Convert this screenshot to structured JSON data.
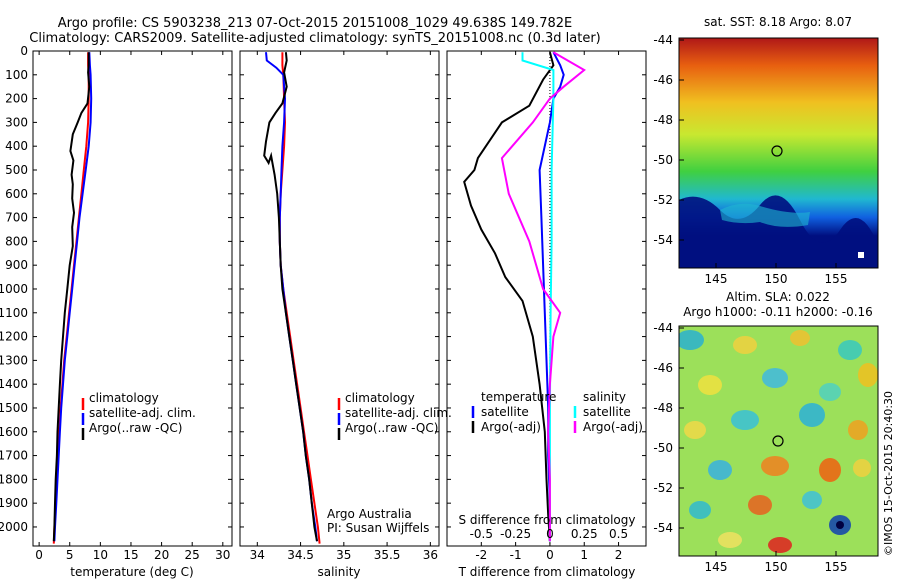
{
  "header": {
    "line1": "Argo profile: CS 5903238_213 07-Oct-2015 20151008_1029 49.638S 149.782E",
    "line2": "Climatology: CARS2009. Satellite-adjusted climatology: synTS_20151008.nc (0.3d later)"
  },
  "colors": {
    "climatology": "#ff0000",
    "satellite": "#0000ff",
    "argo": "#000000",
    "argo_salinity": "#ff00ff",
    "sat_salinity": "#00ffff"
  },
  "chart_data": [
    {
      "id": "temperature",
      "type": "line",
      "xlabel": "temperature (deg C)",
      "xlim": [
        -1,
        31.5
      ],
      "ylim": [
        2080,
        0
      ],
      "xticks": [
        0,
        5,
        10,
        15,
        20,
        25,
        30
      ],
      "yticks": [
        0,
        100,
        200,
        300,
        400,
        500,
        600,
        700,
        800,
        900,
        1000,
        1100,
        1200,
        1300,
        1400,
        1500,
        1600,
        1700,
        1800,
        1900,
        2000
      ],
      "legend": [
        "climatology",
        "satellite-adj. clim.",
        "Argo(..raw -QC)"
      ],
      "series": [
        {
          "name": "climatology",
          "color": "#ff0000",
          "points": [
            [
              8.0,
              5
            ],
            [
              8.0,
              60
            ],
            [
              8.1,
              100
            ],
            [
              8.1,
              200
            ],
            [
              8.0,
              300
            ],
            [
              7.7,
              400
            ],
            [
              7.3,
              500
            ],
            [
              6.9,
              600
            ],
            [
              6.5,
              700
            ],
            [
              6.1,
              800
            ],
            [
              5.7,
              900
            ],
            [
              5.3,
              1000
            ],
            [
              4.9,
              1100
            ],
            [
              4.5,
              1200
            ],
            [
              4.1,
              1300
            ],
            [
              3.8,
              1400
            ],
            [
              3.5,
              1500
            ],
            [
              3.3,
              1600
            ],
            [
              3.1,
              1700
            ],
            [
              2.9,
              1800
            ],
            [
              2.7,
              1900
            ],
            [
              2.5,
              2000
            ],
            [
              2.4,
              2070
            ]
          ]
        },
        {
          "name": "satellite-adj. clim.",
          "color": "#0000ff",
          "points": [
            [
              8.2,
              5
            ],
            [
              8.3,
              60
            ],
            [
              8.4,
              100
            ],
            [
              8.5,
              200
            ],
            [
              8.4,
              300
            ],
            [
              8.1,
              400
            ],
            [
              7.6,
              500
            ],
            [
              7.1,
              600
            ],
            [
              6.6,
              700
            ],
            [
              6.2,
              800
            ],
            [
              5.8,
              900
            ],
            [
              5.4,
              1000
            ],
            [
              5.0,
              1100
            ],
            [
              4.6,
              1200
            ],
            [
              4.2,
              1300
            ],
            [
              3.9,
              1400
            ],
            [
              3.6,
              1500
            ],
            [
              3.4,
              1600
            ],
            [
              3.2,
              1700
            ],
            [
              3.0,
              1800
            ],
            [
              2.8,
              1900
            ],
            [
              2.6,
              2000
            ],
            [
              2.5,
              2060
            ]
          ]
        },
        {
          "name": "Argo(..raw -QC)",
          "color": "#000000",
          "points": [
            [
              8.1,
              5
            ],
            [
              8.1,
              60
            ],
            [
              8.0,
              90
            ],
            [
              8.2,
              150
            ],
            [
              7.9,
              220
            ],
            [
              6.9,
              260
            ],
            [
              6.3,
              300
            ],
            [
              5.5,
              350
            ],
            [
              5.1,
              420
            ],
            [
              5.6,
              460
            ],
            [
              5.3,
              520
            ],
            [
              5.5,
              560
            ],
            [
              5.4,
              620
            ],
            [
              5.7,
              680
            ],
            [
              5.4,
              740
            ],
            [
              5.5,
              820
            ],
            [
              5.0,
              900
            ],
            [
              4.6,
              1000
            ],
            [
              4.2,
              1100
            ],
            [
              3.9,
              1200
            ],
            [
              3.6,
              1300
            ],
            [
              3.4,
              1400
            ],
            [
              3.2,
              1500
            ],
            [
              3.0,
              1600
            ],
            [
              2.9,
              1700
            ],
            [
              2.7,
              1800
            ],
            [
              2.6,
              1900
            ],
            [
              2.5,
              2000
            ],
            [
              2.4,
              2060
            ]
          ]
        }
      ]
    },
    {
      "id": "salinity",
      "type": "line",
      "xlabel": "salinity",
      "xlim": [
        33.8,
        36.1
      ],
      "ylim": [
        2080,
        0
      ],
      "xticks": [
        34,
        34.5,
        35,
        35.5,
        36
      ],
      "legend": [
        "climatology",
        "satellite-adj. clim.",
        "Argo(..raw -QC)"
      ],
      "annotation": [
        "Argo Australia",
        "PI: Susan Wijffels"
      ],
      "series": [
        {
          "name": "climatology",
          "color": "#ff0000",
          "points": [
            [
              34.29,
              5
            ],
            [
              34.29,
              60
            ],
            [
              34.3,
              100
            ],
            [
              34.31,
              200
            ],
            [
              34.32,
              300
            ],
            [
              34.31,
              400
            ],
            [
              34.29,
              500
            ],
            [
              34.27,
              600
            ],
            [
              34.26,
              700
            ],
            [
              34.26,
              800
            ],
            [
              34.27,
              900
            ],
            [
              34.3,
              1000
            ],
            [
              34.34,
              1100
            ],
            [
              34.38,
              1200
            ],
            [
              34.42,
              1300
            ],
            [
              34.46,
              1400
            ],
            [
              34.5,
              1500
            ],
            [
              34.54,
              1600
            ],
            [
              34.58,
              1700
            ],
            [
              34.62,
              1800
            ],
            [
              34.66,
              1900
            ],
            [
              34.7,
              2000
            ],
            [
              34.72,
              2070
            ]
          ]
        },
        {
          "name": "satellite-adj. clim.",
          "color": "#0000ff",
          "points": [
            [
              34.1,
              5
            ],
            [
              34.11,
              40
            ],
            [
              34.22,
              70
            ],
            [
              34.3,
              100
            ],
            [
              34.32,
              200
            ],
            [
              34.31,
              300
            ],
            [
              34.29,
              400
            ],
            [
              34.28,
              500
            ],
            [
              34.27,
              600
            ],
            [
              34.26,
              700
            ],
            [
              34.26,
              800
            ],
            [
              34.27,
              900
            ],
            [
              34.3,
              1000
            ],
            [
              34.33,
              1100
            ],
            [
              34.37,
              1200
            ],
            [
              34.41,
              1300
            ],
            [
              34.45,
              1400
            ],
            [
              34.49,
              1500
            ],
            [
              34.53,
              1600
            ],
            [
              34.56,
              1700
            ],
            [
              34.6,
              1800
            ],
            [
              34.63,
              1900
            ],
            [
              34.67,
              2000
            ],
            [
              34.69,
              2060
            ]
          ]
        },
        {
          "name": "Argo(..raw -QC)",
          "color": "#000000",
          "points": [
            [
              34.33,
              5
            ],
            [
              34.34,
              40
            ],
            [
              34.31,
              90
            ],
            [
              34.34,
              150
            ],
            [
              34.29,
              220
            ],
            [
              34.21,
              260
            ],
            [
              34.14,
              300
            ],
            [
              34.1,
              380
            ],
            [
              34.08,
              440
            ],
            [
              34.13,
              470
            ],
            [
              34.16,
              440
            ],
            [
              34.2,
              520
            ],
            [
              34.23,
              600
            ],
            [
              34.25,
              700
            ],
            [
              34.26,
              800
            ],
            [
              34.27,
              900
            ],
            [
              34.29,
              1000
            ],
            [
              34.33,
              1100
            ],
            [
              34.37,
              1200
            ],
            [
              34.41,
              1300
            ],
            [
              34.45,
              1400
            ],
            [
              34.49,
              1500
            ],
            [
              34.53,
              1600
            ],
            [
              34.56,
              1700
            ],
            [
              34.6,
              1800
            ],
            [
              34.63,
              1900
            ],
            [
              34.66,
              2000
            ],
            [
              34.69,
              2060
            ]
          ]
        }
      ]
    },
    {
      "id": "difference",
      "type": "line",
      "xlabel": "T difference from climatology",
      "xlabel2": "S difference from climatology",
      "xlim": [
        -3.0,
        2.8
      ],
      "ylim": [
        2080,
        0
      ],
      "xticks": [
        -2,
        -1,
        0,
        1,
        2
      ],
      "xticks_salinity": [
        "-0.5",
        "-0.25",
        "0",
        "0.25",
        "0.5"
      ],
      "legend": {
        "temperature": "temperature",
        "salinity": "salinity",
        "satellite": "satellite",
        "argo": "Argo(-adj)"
      },
      "series": [
        {
          "name": "T satellite",
          "color": "#0000ff",
          "points": [
            [
              0.1,
              5
            ],
            [
              0.3,
              60
            ],
            [
              0.4,
              100
            ],
            [
              0.3,
              150
            ],
            [
              0.1,
              200
            ],
            [
              0.0,
              300
            ],
            [
              -0.3,
              500
            ],
            [
              -0.25,
              700
            ],
            [
              -0.2,
              900
            ],
            [
              -0.15,
              1100
            ],
            [
              -0.1,
              1300
            ],
            [
              -0.05,
              1500
            ],
            [
              -0.05,
              1700
            ],
            [
              0.0,
              1900
            ],
            [
              0.0,
              2060
            ]
          ]
        },
        {
          "name": "T Argo(-adj)",
          "color": "#000000",
          "points": [
            [
              0.0,
              5
            ],
            [
              0.1,
              60
            ],
            [
              -0.2,
              120
            ],
            [
              -0.6,
              230
            ],
            [
              -1.4,
              300
            ],
            [
              -2.1,
              450
            ],
            [
              -2.2,
              500
            ],
            [
              -2.5,
              550
            ],
            [
              -2.3,
              650
            ],
            [
              -2.0,
              750
            ],
            [
              -1.6,
              850
            ],
            [
              -1.3,
              950
            ],
            [
              -0.8,
              1050
            ],
            [
              -0.5,
              1200
            ],
            [
              -0.3,
              1400
            ],
            [
              -0.15,
              1600
            ],
            [
              -0.1,
              1800
            ],
            [
              -0.05,
              1950
            ],
            [
              0.0,
              2060
            ]
          ]
        },
        {
          "name": "S satellite",
          "color": "#00ffff",
          "points": [
            [
              -0.8,
              5
            ],
            [
              -0.8,
              40
            ],
            [
              0.1,
              80
            ],
            [
              0.1,
              200
            ],
            [
              0.05,
              500
            ],
            [
              0.05,
              800
            ],
            [
              0.02,
              1100
            ],
            [
              0.0,
              1500
            ],
            [
              0.0,
              2060
            ]
          ]
        },
        {
          "name": "S Argo(-adj)",
          "color": "#ff00ff",
          "points": [
            [
              0.1,
              5
            ],
            [
              1.0,
              80
            ],
            [
              0.4,
              150
            ],
            [
              0.0,
              200
            ],
            [
              -0.5,
              300
            ],
            [
              -1.4,
              450
            ],
            [
              -1.2,
              600
            ],
            [
              -0.6,
              800
            ],
            [
              -0.2,
              1000
            ],
            [
              0.3,
              1100
            ],
            [
              0.1,
              1200
            ],
            [
              0.0,
              1400
            ],
            [
              -0.05,
              1600
            ],
            [
              0.0,
              1800
            ],
            [
              0.0,
              2060
            ]
          ]
        }
      ]
    }
  ],
  "maps": {
    "sst": {
      "title": "sat. SST: 8.18 Argo: 8.07",
      "yticks": [
        "-44",
        "-46",
        "-48",
        "-50",
        "-52",
        "-54"
      ],
      "xticks": [
        "145",
        "150",
        "155"
      ]
    },
    "sla": {
      "title1": "Altim. SLA: 0.022",
      "title2": "Argo h1000: -0.11 h2000: -0.16",
      "yticks": [
        "-44",
        "-46",
        "-48",
        "-50",
        "-52",
        "-54"
      ],
      "xticks": [
        "145",
        "150",
        "155"
      ],
      "credit": "©IMOS 15-Oct-2015 20:40:30"
    }
  }
}
